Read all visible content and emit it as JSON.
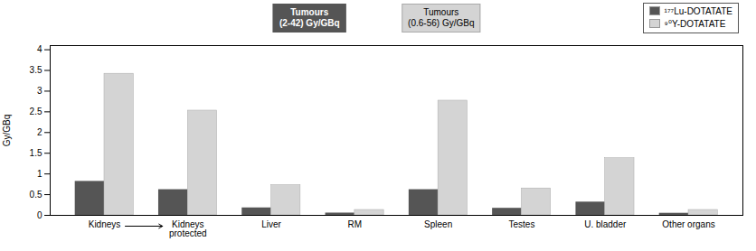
{
  "chart_data": {
    "type": "bar",
    "categories": [
      "Kidneys",
      "Kidneys\nprotected",
      "Liver",
      "RM",
      "Spleen",
      "Testes",
      "U. bladder",
      "Other organs"
    ],
    "series": [
      {
        "name": "¹⁷⁷Lu-DOTATATE",
        "color": "#555555",
        "values": [
          0.82,
          0.62,
          0.18,
          0.055,
          0.62,
          0.17,
          0.32,
          0.05
        ]
      },
      {
        "name": "⁹⁰Y-DOTATATE",
        "color": "#d4d4d4",
        "values": [
          3.42,
          2.53,
          0.73,
          0.13,
          2.77,
          0.65,
          1.38,
          0.13
        ]
      }
    ],
    "ylabel": "Gy/GBq",
    "ylim": [
      0,
      4.1
    ],
    "yticks": [
      0,
      0.5,
      1,
      1.5,
      2,
      2.5,
      3,
      3.5,
      4
    ],
    "grid": false,
    "legend": "upper right",
    "annotations": [
      "Tumours\n(2-42) Gy/GBq",
      "Tumours\n(0.6-56) Gy/GBq"
    ]
  }
}
